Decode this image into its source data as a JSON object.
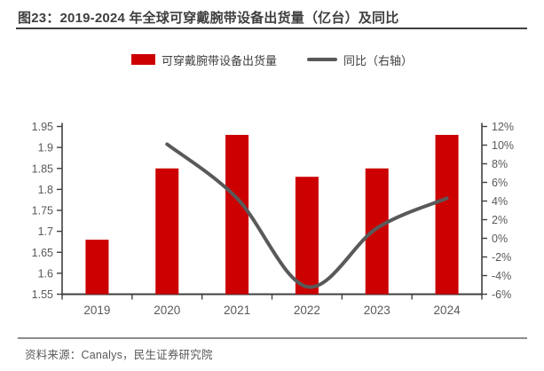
{
  "page": {
    "title": "图23：2019-2024 年全球可穿戴腕带设备出货量（亿台）及同比",
    "source": "资料来源：Canalys，民生证券研究院"
  },
  "legend": {
    "bar": {
      "label": "可穿戴腕带设备出货量"
    },
    "line": {
      "label": "同比（右轴）"
    }
  },
  "colors": {
    "bar": "#cc0000",
    "line": "#595959",
    "axis": "#404040",
    "tick_label": "#595959",
    "title": "#3f3f3f"
  },
  "chart_data": {
    "type": "bar",
    "subtype": "bar+line combo",
    "title": "2019-2024 年全球可穿戴腕带设备出货量（亿台）及同比",
    "categories": [
      "2019",
      "2020",
      "2021",
      "2022",
      "2023",
      "2024"
    ],
    "series": [
      {
        "name": "可穿戴腕带设备出货量",
        "type": "bar",
        "axis": "left",
        "color": "#cc0000",
        "values": [
          1.68,
          1.85,
          1.93,
          1.83,
          1.85,
          1.93
        ]
      },
      {
        "name": "同比（右轴）",
        "type": "line",
        "axis": "right",
        "color": "#595959",
        "values": [
          null,
          10.1,
          4.3,
          -5.2,
          1.1,
          4.3
        ]
      }
    ],
    "left_axis": {
      "min": 1.55,
      "max": 1.95,
      "step": 0.05,
      "ticks": [
        "1.95",
        "1.9",
        "1.85",
        "1.8",
        "1.75",
        "1.7",
        "1.65",
        "1.6",
        "1.55"
      ]
    },
    "right_axis": {
      "min": -6,
      "max": 12,
      "step": 2,
      "ticks": [
        "12%",
        "10%",
        "8%",
        "6%",
        "4%",
        "2%",
        "0%",
        "-2%",
        "-4%",
        "-6%"
      ]
    },
    "grid": false,
    "legend_position": "top"
  }
}
